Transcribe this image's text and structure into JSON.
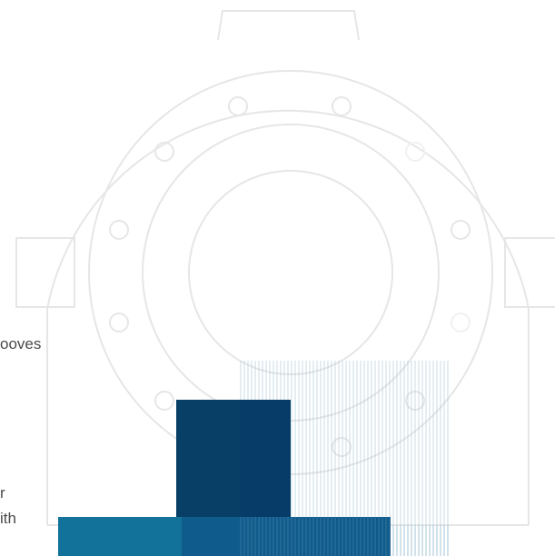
{
  "text_fragments": [
    {
      "text": "ooves"
    },
    {
      "text": "r"
    },
    {
      "text": "ith"
    }
  ],
  "colors": {
    "line_art": "#e6e6e6",
    "hatch": "#9fc3d2",
    "navy_block": "#083f66",
    "teal_block": "#13729a",
    "blue_block": "#0f5b8c",
    "text": "#4a4a4a",
    "background": "#ffffff"
  }
}
